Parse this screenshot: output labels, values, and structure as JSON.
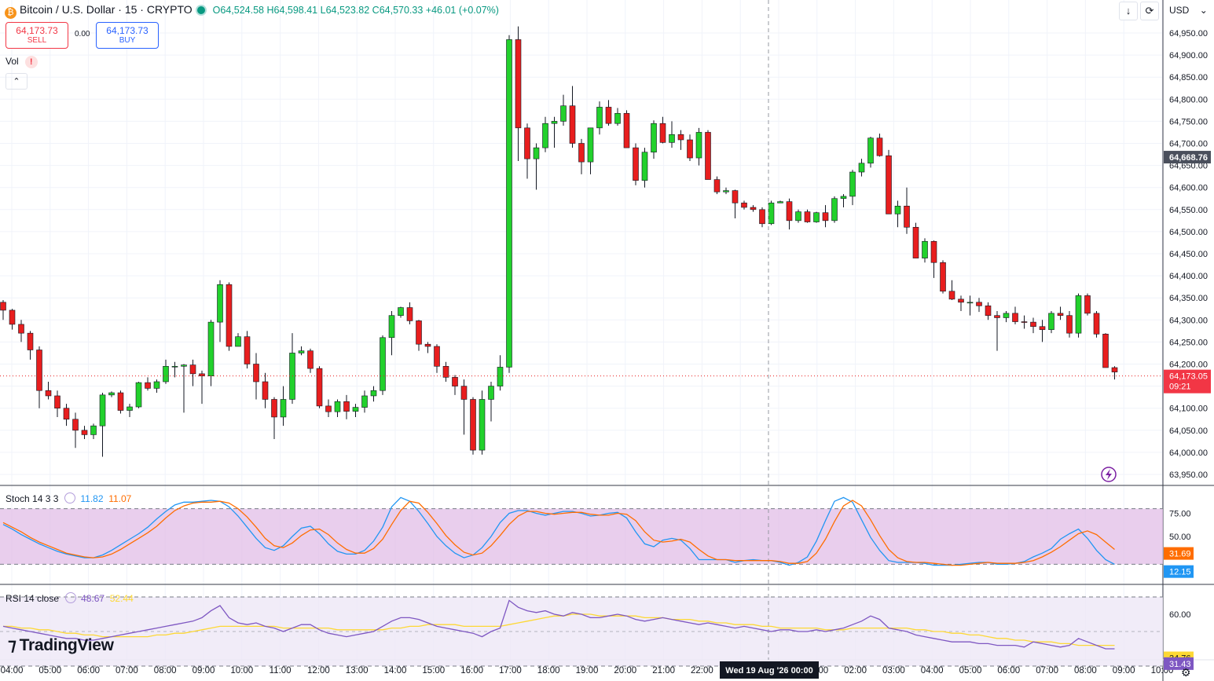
{
  "header": {
    "symbol": "Bitcoin / U.S. Dollar · 15 · CRYPTO",
    "open": "O64,524.58",
    "high": "H64,598.41",
    "low": "L64,523.82",
    "close": "C64,570.33",
    "change": "+46.01 (+0.07%)"
  },
  "trade": {
    "sell_price": "64,173.73",
    "sell_label": "SELL",
    "spread": "0.00",
    "buy_price": "64,173.73",
    "buy_label": "BUY"
  },
  "vol_label": "Vol",
  "currency": "USD",
  "logo_text": "TradingView",
  "stoch": {
    "label": "Stoch 14 3 3",
    "k_value": "11.82",
    "d_value": "11.07"
  },
  "rsi": {
    "label": "RSI 14 close",
    "value": "48.67",
    "ma_value": "52.44"
  },
  "colors": {
    "up": "#22d12c",
    "down": "#e81e1e",
    "stoch_k": "#2196f3",
    "stoch_d": "#ff6d00",
    "rsi": "#7e57c2",
    "rsi_ma": "#fdd835"
  },
  "chart_data": {
    "type": "candlestick",
    "price_ticks": [
      "64,950.00",
      "64,900.00",
      "64,850.00",
      "64,800.00",
      "64,750.00",
      "64,700.00",
      "64,650.00",
      "64,600.00",
      "64,550.00",
      "64,500.00",
      "64,450.00",
      "64,400.00",
      "64,350.00",
      "64,300.00",
      "64,250.00",
      "64,200.00",
      "64,150.00",
      "64,100.00",
      "64,050.00",
      "64,000.00",
      "63,950.00"
    ],
    "ylim": [
      63940,
      64980
    ],
    "time_labels": [
      "04:00",
      "05:00",
      "06:00",
      "07:00",
      "08:00",
      "09:00",
      "10:00",
      "11:00",
      "12:00",
      "13:00",
      "14:00",
      "15:00",
      "16:00",
      "17:00",
      "18:00",
      "19:00",
      "20:00",
      "21:00",
      "22:00",
      "",
      "00:00",
      "01:00",
      "02:00",
      "03:00",
      "04:00",
      "05:00",
      "06:00",
      "07:00",
      "08:00",
      "09:00",
      "10:00"
    ],
    "crosshair_label": "Wed 19 Aug '26  00:00",
    "highlight_price": "64,668.76",
    "last_price": "64,173.05",
    "countdown": "09:21",
    "candles": [
      [
        64340,
        64345,
        64300,
        64322
      ],
      [
        64322,
        64325,
        64278,
        64290
      ],
      [
        64290,
        64300,
        64250,
        64270
      ],
      [
        64270,
        64275,
        64210,
        64232
      ],
      [
        64232,
        64240,
        64100,
        64140
      ],
      [
        64140,
        64160,
        64120,
        64128
      ],
      [
        64128,
        64140,
        64080,
        64100
      ],
      [
        64100,
        64110,
        64060,
        64075
      ],
      [
        64075,
        64090,
        64010,
        64050
      ],
      [
        64050,
        64060,
        64030,
        64040
      ],
      [
        64040,
        64065,
        64030,
        64060
      ],
      [
        64060,
        64135,
        63990,
        64130
      ],
      [
        64130,
        64138,
        64125,
        64135
      ],
      [
        64135,
        64140,
        64088,
        64095
      ],
      [
        64095,
        64110,
        64080,
        64103
      ],
      [
        64103,
        64160,
        64100,
        64158
      ],
      [
        64158,
        64170,
        64140,
        64145
      ],
      [
        64145,
        64165,
        64135,
        64160
      ],
      [
        64160,
        64210,
        64155,
        64195
      ],
      [
        64195,
        64205,
        64170,
        64195
      ],
      [
        64195,
        64200,
        64090,
        64198
      ],
      [
        64198,
        64210,
        64150,
        64178
      ],
      [
        64178,
        64185,
        64110,
        64173
      ],
      [
        64173,
        64300,
        64150,
        64295
      ],
      [
        64295,
        64390,
        64250,
        64380
      ],
      [
        64380,
        64385,
        64230,
        64240
      ],
      [
        64240,
        64270,
        64240,
        64262
      ],
      [
        64262,
        64275,
        64190,
        64200
      ],
      [
        64200,
        64225,
        64120,
        64160
      ],
      [
        64160,
        64180,
        64100,
        64120
      ],
      [
        64120,
        64125,
        64030,
        64080
      ],
      [
        64080,
        64150,
        64060,
        64120
      ],
      [
        64120,
        64270,
        64110,
        64225
      ],
      [
        64225,
        64240,
        64220,
        64230
      ],
      [
        64230,
        64235,
        64180,
        64190
      ],
      [
        64190,
        64195,
        64100,
        64105
      ],
      [
        64105,
        64120,
        64080,
        64092
      ],
      [
        64092,
        64120,
        64080,
        64115
      ],
      [
        64115,
        64130,
        64075,
        64093
      ],
      [
        64093,
        64110,
        64080,
        64102
      ],
      [
        64102,
        64140,
        64090,
        64128
      ],
      [
        64128,
        64150,
        64115,
        64140
      ],
      [
        64140,
        64265,
        64130,
        64260
      ],
      [
        64260,
        64320,
        64220,
        64310
      ],
      [
        64310,
        64330,
        64305,
        64328
      ],
      [
        64328,
        64340,
        64290,
        64298
      ],
      [
        64298,
        64300,
        64230,
        64245
      ],
      [
        64245,
        64250,
        64225,
        64240
      ],
      [
        64240,
        64245,
        64180,
        64195
      ],
      [
        64195,
        64205,
        64160,
        64170
      ],
      [
        64170,
        64175,
        64130,
        64150
      ],
      [
        64150,
        64165,
        64040,
        64120
      ],
      [
        64120,
        64125,
        63995,
        64005
      ],
      [
        64005,
        64140,
        63995,
        64120
      ],
      [
        64120,
        64160,
        64070,
        64150
      ],
      [
        64150,
        64220,
        64140,
        64193
      ],
      [
        64193,
        64945,
        64180,
        64935
      ],
      [
        64935,
        64965,
        64660,
        64735
      ],
      [
        64735,
        64745,
        64620,
        64665
      ],
      [
        64665,
        64700,
        64595,
        64690
      ],
      [
        64690,
        64760,
        64680,
        64745
      ],
      [
        64745,
        64760,
        64690,
        64750
      ],
      [
        64750,
        64810,
        64740,
        64785
      ],
      [
        64785,
        64830,
        64690,
        64700
      ],
      [
        64700,
        64710,
        64630,
        64658
      ],
      [
        64658,
        64735,
        64630,
        64735
      ],
      [
        64735,
        64795,
        64720,
        64782
      ],
      [
        64782,
        64798,
        64740,
        64745
      ],
      [
        64745,
        64780,
        64740,
        64768
      ],
      [
        64768,
        64775,
        64690,
        64690
      ],
      [
        64690,
        64700,
        64605,
        64616
      ],
      [
        64616,
        64690,
        64600,
        64680
      ],
      [
        64680,
        64752,
        64665,
        64745
      ],
      [
        64745,
        64760,
        64700,
        64702
      ],
      [
        64702,
        64750,
        64690,
        64720
      ],
      [
        64720,
        64730,
        64685,
        64708
      ],
      [
        64708,
        64720,
        64660,
        64667
      ],
      [
        64667,
        64735,
        64650,
        64725
      ],
      [
        64725,
        64730,
        64620,
        64618
      ],
      [
        64618,
        64625,
        64585,
        64590
      ],
      [
        64590,
        64600,
        64585,
        64593
      ],
      [
        64593,
        64595,
        64530,
        64565
      ],
      [
        64565,
        64570,
        64550,
        64555
      ],
      [
        64555,
        64560,
        64545,
        64550
      ],
      [
        64550,
        64555,
        64510,
        64518
      ],
      [
        64518,
        64570,
        64515,
        64565
      ],
      [
        64565,
        64570,
        64565,
        64568
      ],
      [
        64568,
        64575,
        64505,
        64525
      ],
      [
        64525,
        64550,
        64520,
        64545
      ],
      [
        64545,
        64550,
        64520,
        64522
      ],
      [
        64522,
        64545,
        64520,
        64543
      ],
      [
        64543,
        64560,
        64510,
        64525
      ],
      [
        64525,
        64580,
        64520,
        64575
      ],
      [
        64575,
        64585,
        64555,
        64580
      ],
      [
        64580,
        64640,
        64560,
        64635
      ],
      [
        64635,
        64665,
        64625,
        64655
      ],
      [
        64655,
        64715,
        64645,
        64712
      ],
      [
        64712,
        64722,
        64670,
        64672
      ],
      [
        64672,
        64685,
        64540,
        64540
      ],
      [
        64540,
        64570,
        64510,
        64558
      ],
      [
        64558,
        64600,
        64495,
        64510
      ],
      [
        64510,
        64520,
        64440,
        64440
      ],
      [
        64440,
        64485,
        64430,
        64478
      ],
      [
        64478,
        64480,
        64395,
        64430
      ],
      [
        64430,
        64435,
        64360,
        64365
      ],
      [
        64365,
        64390,
        64345,
        64347
      ],
      [
        64347,
        64355,
        64320,
        64340
      ],
      [
        64340,
        64355,
        64310,
        64340
      ],
      [
        64340,
        64350,
        64318,
        64332
      ],
      [
        64332,
        64340,
        64300,
        64310
      ],
      [
        64310,
        64320,
        64230,
        64305
      ],
      [
        64305,
        64320,
        64295,
        64315
      ],
      [
        64315,
        64330,
        64290,
        64296
      ],
      [
        64296,
        64310,
        64280,
        64295
      ],
      [
        64295,
        64305,
        64270,
        64285
      ],
      [
        64285,
        64300,
        64250,
        64278
      ],
      [
        64278,
        64320,
        64270,
        64315
      ],
      [
        64315,
        64330,
        64300,
        64310
      ],
      [
        64310,
        64320,
        64260,
        64270
      ],
      [
        64270,
        64360,
        64260,
        64355
      ],
      [
        64355,
        64360,
        64310,
        64315
      ],
      [
        64315,
        64320,
        64260,
        64268
      ],
      [
        64268,
        64270,
        64195,
        64192
      ],
      [
        64192,
        64195,
        64165,
        64182
      ]
    ],
    "stoch_k": [
      63,
      58,
      52,
      47,
      42,
      38,
      34,
      31,
      29,
      27,
      27,
      30,
      35,
      41,
      47,
      53,
      60,
      69,
      77,
      84,
      87,
      87,
      88,
      89,
      88,
      82,
      72,
      60,
      48,
      38,
      35,
      40,
      50,
      59,
      61,
      53,
      42,
      34,
      31,
      31,
      35,
      45,
      60,
      82,
      92,
      88,
      77,
      64,
      50,
      40,
      32,
      27,
      30,
      38,
      50,
      65,
      75,
      78,
      78,
      75,
      73,
      75,
      77,
      77,
      75,
      72,
      73,
      75,
      76,
      70,
      55,
      42,
      39,
      46,
      48,
      46,
      37,
      25,
      25,
      25,
      25,
      22,
      24,
      25,
      24,
      24,
      22,
      19,
      22,
      28,
      45,
      67,
      88,
      92,
      87,
      68,
      49,
      35,
      24,
      22,
      22,
      22,
      21,
      19,
      19,
      19,
      20,
      21,
      22,
      22,
      20,
      20,
      21,
      23,
      28,
      32,
      37,
      47,
      53,
      58,
      48,
      35,
      25,
      20
    ],
    "stoch_d": [
      65,
      60,
      55,
      49,
      44,
      40,
      36,
      32,
      30,
      28,
      27,
      28,
      31,
      36,
      42,
      48,
      54,
      61,
      70,
      78,
      83,
      86,
      87,
      87,
      88,
      86,
      80,
      71,
      60,
      48,
      40,
      38,
      43,
      51,
      57,
      58,
      52,
      43,
      36,
      32,
      32,
      37,
      47,
      63,
      78,
      88,
      86,
      76,
      64,
      51,
      41,
      33,
      30,
      32,
      40,
      51,
      63,
      72,
      77,
      77,
      75,
      74,
      75,
      76,
      76,
      74,
      73,
      73,
      75,
      74,
      67,
      55,
      46,
      44,
      45,
      47,
      44,
      36,
      29,
      25,
      25,
      24,
      24,
      24,
      24,
      24,
      23,
      21,
      21,
      23,
      32,
      47,
      66,
      83,
      89,
      83,
      68,
      51,
      36,
      27,
      23,
      22,
      22,
      21,
      20,
      19,
      19,
      20,
      21,
      22,
      21,
      21,
      21,
      22,
      24,
      28,
      33,
      39,
      46,
      53,
      56,
      52,
      44,
      36
    ],
    "rsi": [
      53,
      52,
      51,
      50,
      49,
      48,
      47,
      46,
      46,
      45,
      45,
      46,
      47,
      48,
      49,
      50,
      51,
      52,
      53,
      54,
      55,
      56,
      58,
      62,
      65,
      58,
      55,
      54,
      55,
      53,
      52,
      50,
      52,
      54,
      54,
      51,
      49,
      48,
      47,
      48,
      49,
      50,
      53,
      56,
      58,
      58,
      57,
      55,
      53,
      52,
      51,
      50,
      49,
      47,
      50,
      52,
      68,
      64,
      62,
      61,
      62,
      60,
      59,
      61,
      60,
      58,
      58,
      59,
      60,
      59,
      57,
      56,
      57,
      58,
      57,
      56,
      55,
      54,
      55,
      54,
      53,
      52,
      53,
      52,
      51,
      50,
      51,
      51,
      50,
      50,
      51,
      50,
      51,
      52,
      54,
      56,
      59,
      57,
      52,
      51,
      50,
      48,
      47,
      46,
      45,
      44,
      44,
      44,
      43,
      43,
      42,
      42,
      42,
      41,
      44,
      43,
      42,
      41,
      42,
      46,
      44,
      42,
      40,
      40
    ],
    "rsi_ma": [
      53,
      53,
      52,
      52,
      51,
      51,
      50,
      49,
      49,
      48,
      48,
      47,
      47,
      47,
      47,
      47,
      47,
      48,
      48,
      49,
      49,
      50,
      51,
      52,
      53,
      53,
      53,
      53,
      53,
      53,
      53,
      52,
      52,
      52,
      52,
      52,
      52,
      51,
      51,
      51,
      51,
      51,
      51,
      52,
      52,
      53,
      53,
      54,
      54,
      54,
      54,
      53,
      53,
      53,
      53,
      53,
      54,
      55,
      56,
      57,
      58,
      59,
      59,
      60,
      60,
      60,
      59,
      59,
      59,
      59,
      59,
      58,
      58,
      58,
      57,
      57,
      57,
      56,
      56,
      55,
      55,
      54,
      54,
      54,
      53,
      53,
      52,
      52,
      52,
      52,
      52,
      51,
      51,
      51,
      52,
      52,
      52,
      52,
      52,
      52,
      52,
      51,
      51,
      50,
      50,
      49,
      49,
      48,
      48,
      47,
      46,
      46,
      45,
      45,
      44,
      44,
      44,
      43,
      43,
      42,
      42,
      42,
      42,
      42
    ],
    "stoch_ticks": [
      "75.00",
      "50.00"
    ],
    "rsi_ticks": [
      "60.00"
    ],
    "stoch_k_label": "12.15",
    "stoch_d_label": "31.69",
    "rsi_value_label": "31.43",
    "rsi_ma_label": "34.76"
  }
}
